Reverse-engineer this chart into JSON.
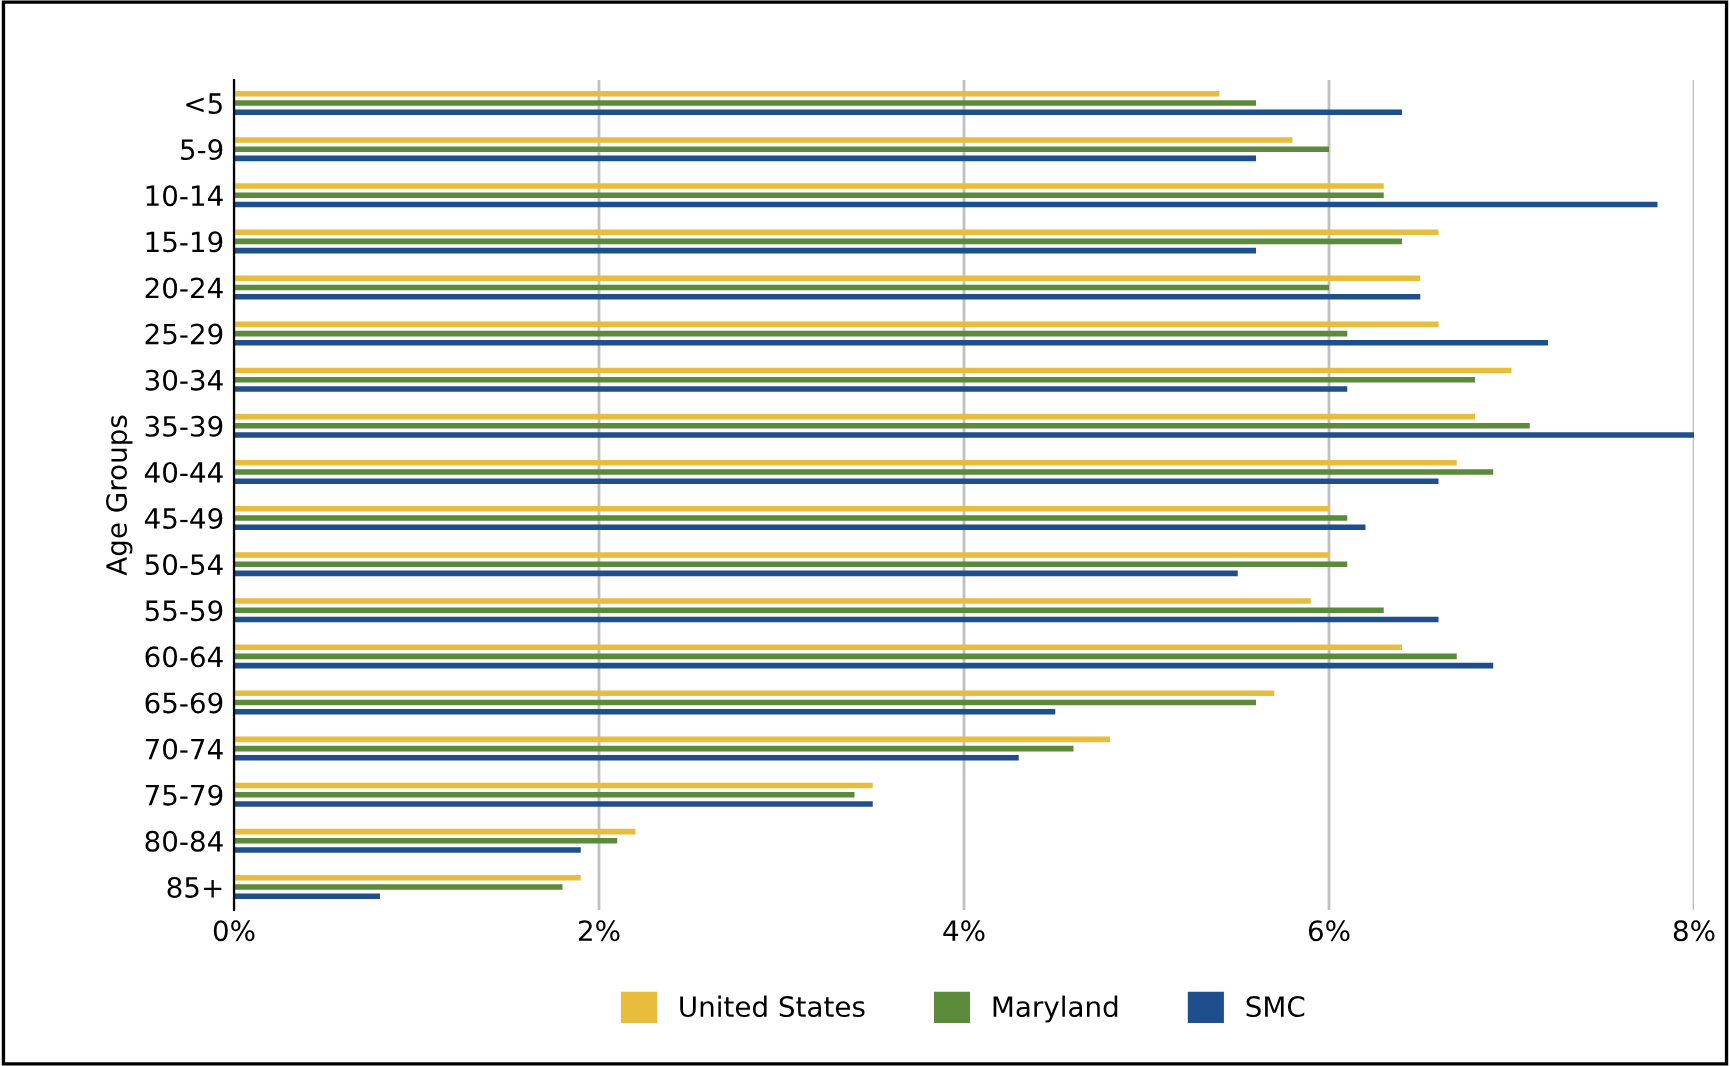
{
  "chart_data": {
    "type": "bar",
    "orientation": "horizontal",
    "ylabel": "Age Groups",
    "categories": [
      "<5",
      "5-9",
      "10-14",
      "15-19",
      "20-24",
      "25-29",
      "30-34",
      "35-39",
      "40-44",
      "45-49",
      "50-54",
      "55-59",
      "60-64",
      "65-69",
      "70-74",
      "75-79",
      "80-84",
      "85+"
    ],
    "series": [
      {
        "name": "United States",
        "color": "#e8bc3c",
        "values": [
          5.4,
          5.8,
          6.3,
          6.6,
          6.5,
          6.6,
          7.0,
          6.8,
          6.7,
          6.0,
          6.0,
          5.9,
          6.4,
          5.7,
          4.8,
          3.5,
          2.2,
          1.9
        ]
      },
      {
        "name": "Maryland",
        "color": "#5a8a3a",
        "values": [
          5.6,
          6.0,
          6.3,
          6.4,
          6.0,
          6.1,
          6.8,
          7.1,
          6.9,
          6.1,
          6.1,
          6.3,
          6.7,
          5.6,
          4.6,
          3.4,
          2.1,
          1.8
        ]
      },
      {
        "name": "SMC",
        "color": "#1f4e8c",
        "values": [
          6.4,
          5.6,
          7.8,
          5.6,
          6.5,
          7.2,
          6.1,
          8.0,
          6.6,
          6.2,
          5.5,
          6.6,
          6.9,
          4.5,
          4.3,
          3.5,
          1.9,
          0.8
        ]
      }
    ],
    "xlim": [
      0,
      8
    ],
    "xticks": [
      {
        "value": 0,
        "label": "0%"
      },
      {
        "value": 2,
        "label": "2%"
      },
      {
        "value": 4,
        "label": "4%"
      },
      {
        "value": 6,
        "label": "6%"
      },
      {
        "value": 8,
        "label": "8%"
      }
    ],
    "grid": "x",
    "legend": "bottom"
  }
}
